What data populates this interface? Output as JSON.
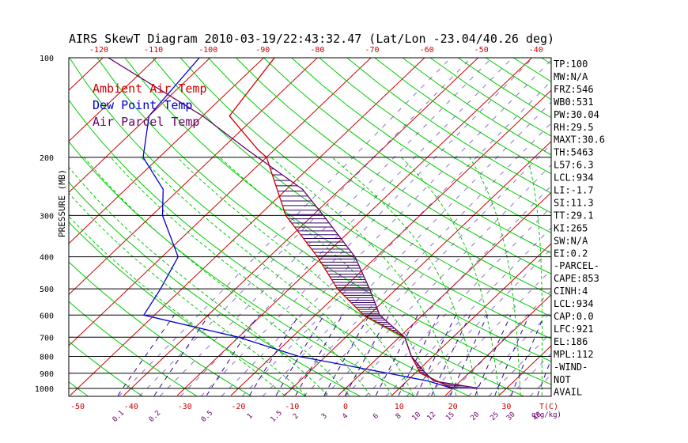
{
  "chart_data": {
    "type": "line",
    "title": "AIRS SkewT Diagram 2010-03-19/22:43:32.47 (Lat/Lon -23.04/40.26 deg)",
    "ylabel": "PRESSURE (MB)",
    "xlabel": "T(C)",
    "mixing_ratio_unit": "q(g/kg)",
    "ylim": [
      1050,
      100
    ],
    "xlim_bottom": [
      -54,
      36
    ],
    "pressure_ticks": [
      100,
      200,
      300,
      400,
      500,
      600,
      700,
      800,
      900,
      1000
    ],
    "bottom_temp_ticks": [
      -50,
      -40,
      -30,
      -20,
      -10,
      0,
      10,
      20,
      30
    ],
    "top_temp_ticks": [
      -120,
      -110,
      -100,
      -90,
      -80,
      -70,
      -60,
      -50,
      -40
    ],
    "mixing_ratio_ticks": [
      "0.1",
      "0.2",
      "0.5",
      "1",
      "1.5",
      "2",
      "3",
      "4",
      "6",
      "8",
      "10",
      "12",
      "15",
      "20",
      "25",
      "30",
      "40"
    ],
    "legend": [
      {
        "label": "Ambient Air Temp",
        "color": "#cc0000"
      },
      {
        "label": "Dew Point Temp",
        "color": "#0000cc"
      },
      {
        "label": "Air Parcel Temp",
        "color": "#660066"
      }
    ],
    "series": [
      {
        "name": "Ambient Air Temp",
        "color": "#cc0000",
        "points": [
          [
            100,
            -78
          ],
          [
            150,
            -75
          ],
          [
            190,
            -63
          ],
          [
            200,
            -60
          ],
          [
            300,
            -45
          ],
          [
            400,
            -31
          ],
          [
            500,
            -21
          ],
          [
            600,
            -11
          ],
          [
            700,
            1
          ],
          [
            800,
            6
          ],
          [
            900,
            11
          ],
          [
            1000,
            20
          ]
        ]
      },
      {
        "name": "Dew Point Temp",
        "color": "#0000cc",
        "points": [
          [
            100,
            -92
          ],
          [
            150,
            -90
          ],
          [
            200,
            -83
          ],
          [
            250,
            -73
          ],
          [
            300,
            -68
          ],
          [
            400,
            -57
          ],
          [
            500,
            -54
          ],
          [
            600,
            -52
          ],
          [
            700,
            -30
          ],
          [
            800,
            -15
          ],
          [
            900,
            5
          ],
          [
            950,
            14
          ],
          [
            1000,
            20
          ]
        ]
      },
      {
        "name": "Air Parcel Temp",
        "color": "#660066",
        "points": [
          [
            100,
            -109
          ],
          [
            150,
            -80
          ],
          [
            190,
            -65
          ],
          [
            250,
            -47
          ],
          [
            300,
            -38
          ],
          [
            400,
            -24
          ],
          [
            500,
            -15
          ],
          [
            600,
            -8
          ],
          [
            700,
            1
          ],
          [
            800,
            6
          ],
          [
            900,
            12
          ],
          [
            950,
            15
          ],
          [
            1000,
            25
          ]
        ]
      }
    ],
    "indices": [
      "TP:100",
      "MW:N/A",
      "FRZ:546",
      "WB0:531",
      "PW:30.04",
      "RH:29.5",
      "MAXT:30.6",
      "TH:5463",
      "L57:6.3",
      "LCL:934",
      "LI:-1.7",
      "SI:11.3",
      "TT:29.1",
      "KI:265",
      "SW:N/A",
      "EI:0.2",
      "-PARCEL-",
      "CAPE:853",
      "CINH:4",
      "LCL:934",
      "CAP:0.0",
      "LFC:921",
      "EL:186",
      "MPL:112",
      "-WIND-",
      "NOT",
      "AVAIL"
    ],
    "colors": {
      "isotherm": "#cc0000",
      "dry_adiabat": "#00cc00",
      "moist_adiabat": "#00cc00",
      "mixing_ratio": "#330099",
      "isobar": "#000000",
      "cape_hatch": "#330066",
      "bottom_tick_text": "#cc0000",
      "top_tick_text": "#cc0000",
      "mixing_text": "#660066"
    }
  }
}
